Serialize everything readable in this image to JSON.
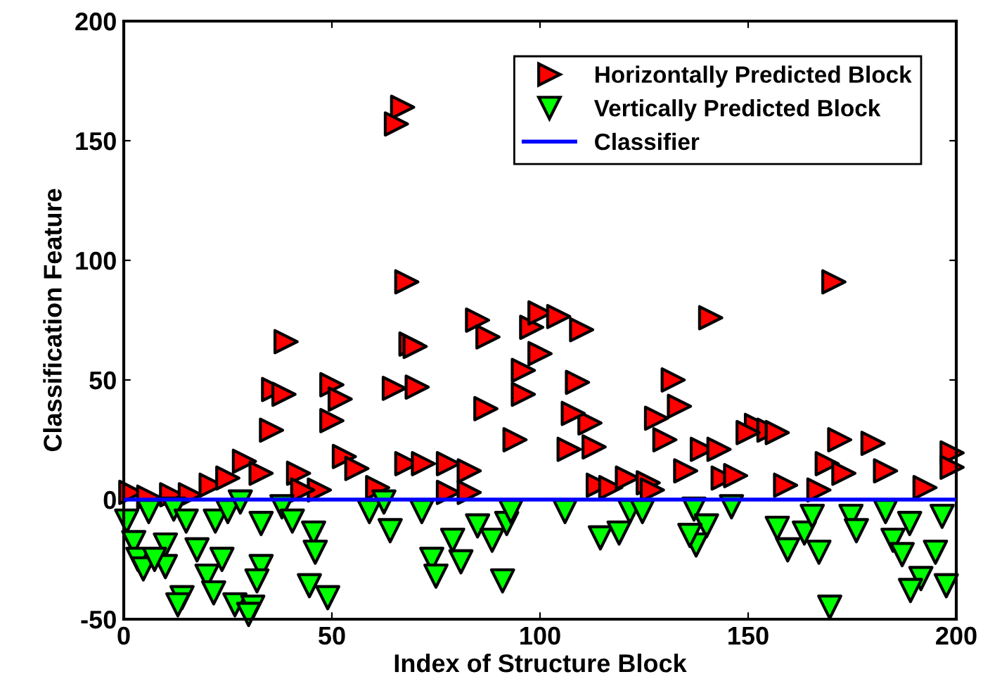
{
  "chart_data": {
    "type": "scatter",
    "xlabel": "Index of Structure Block",
    "ylabel": "Classification Feature",
    "xlim": [
      0,
      200
    ],
    "xticks": [
      0,
      50,
      100,
      150,
      200
    ],
    "ylim": [
      -50,
      200
    ],
    "yticks": [
      -50,
      0,
      50,
      100,
      150,
      200
    ],
    "grid": false,
    "legend": "top right",
    "series": [
      {
        "name": "Horizontally Predicted Block",
        "color": "#ff0000",
        "marker": "triangle-right",
        "x": [
          1.7,
          6,
          11.5,
          16,
          21,
          25,
          29,
          33,
          42,
          39,
          36,
          38.5,
          35.5,
          50,
          52,
          50,
          53,
          56,
          47,
          43,
          61,
          65,
          70.5,
          69,
          68,
          72,
          78,
          83,
          78,
          83,
          68,
          85,
          87.5,
          87,
          94,
          96,
          96,
          98,
          67,
          65.5,
          70,
          100,
          104.5,
          110,
          100,
          109,
          112,
          108,
          107,
          113,
          114,
          117,
          121,
          126,
          127,
          132,
          133.5,
          128,
          130,
          135,
          139,
          143,
          141,
          144,
          147,
          152,
          155,
          157,
          150,
          159,
          167,
          169,
          172,
          173,
          180,
          183,
          192.5,
          199,
          199,
          170.6
        ],
        "values": [
          3,
          1,
          2,
          2,
          6,
          9,
          16,
          11,
          11,
          66,
          46,
          44,
          29,
          48,
          42,
          33,
          18,
          13,
          4,
          4,
          5,
          46.5,
          47,
          65,
          15,
          15,
          15,
          12,
          3,
          3,
          91,
          75,
          68,
          38,
          25,
          44,
          54,
          72,
          164,
          157,
          64,
          78,
          76.5,
          71,
          61,
          49,
          32,
          36,
          21,
          22,
          6,
          5,
          9,
          7,
          4,
          50,
          39,
          34,
          25,
          12,
          21,
          21,
          76,
          9,
          10,
          31,
          29,
          28,
          28,
          6,
          4,
          15,
          25,
          11,
          23.5,
          12,
          5,
          19.5,
          13.5,
          91
        ]
      },
      {
        "name": "Vertically Predicted Block",
        "color": "#00ff00",
        "marker": "triangle-down",
        "x": [
          0.7,
          6,
          12,
          15,
          22,
          25,
          28,
          2.4,
          3.4,
          4.7,
          10,
          10,
          7.4,
          17.6,
          23.6,
          20,
          14,
          13,
          21.6,
          33,
          32,
          26.7,
          31,
          30,
          33,
          38,
          40.5,
          45.6,
          46,
          44.6,
          49,
          59,
          62.5,
          64,
          71.6,
          74,
          75,
          81,
          79,
          85,
          88.5,
          92,
          93,
          91,
          106,
          114.5,
          119,
          121.6,
          124.6,
          137,
          140,
          137.5,
          136,
          146,
          157,
          159.5,
          163.5,
          165.4,
          167,
          169.6,
          174.7,
          176,
          183,
          184.8,
          187,
          188.8,
          195,
          196.6,
          191.5,
          189,
          197.6
        ],
        "values": [
          -9,
          -5,
          -4,
          -9,
          -9,
          -5,
          -1,
          -18,
          -25,
          -29,
          -19,
          -28,
          -25,
          -21,
          -25,
          -32,
          -41,
          -44,
          -39,
          -28,
          -34,
          -44,
          -45,
          -48,
          -10,
          -3,
          -9,
          -14,
          -22,
          -36,
          -41,
          -5,
          -1,
          -13,
          -5,
          -25,
          -32,
          -26,
          -17,
          -11,
          -17,
          -10,
          -5,
          -34,
          -5,
          -16,
          -14,
          -5,
          -5,
          -4,
          -11,
          -19,
          -15,
          -3,
          -12,
          -21,
          -14,
          -7,
          -22,
          -45,
          -7,
          -13,
          -5,
          -17,
          -23,
          -10,
          -22,
          -7,
          -33,
          -38,
          -36
        ]
      },
      {
        "name": "Classifier",
        "type": "line",
        "color": "#0000ff",
        "marker": "none",
        "x": [
          0,
          200
        ],
        "values": [
          0,
          0
        ]
      }
    ]
  }
}
